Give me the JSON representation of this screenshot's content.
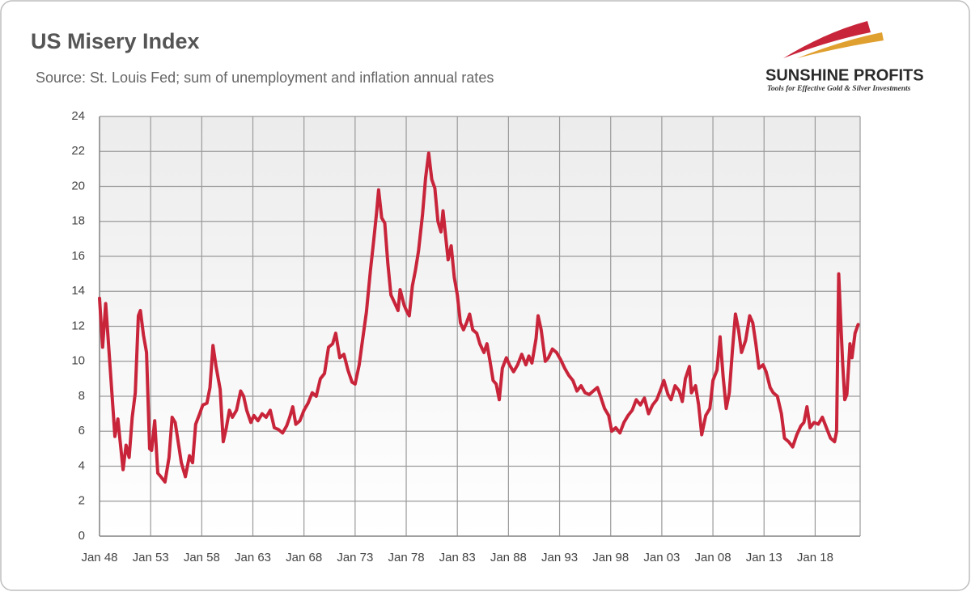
{
  "chart_data": {
    "type": "line",
    "title": "US Misery Index",
    "subtitle": "Source: St. Louis Fed; sum of unemployment and inflation annual rates",
    "logo": {
      "name": "SUNSHINE PROFITS",
      "tagline": "Tools for Effective Gold & Silver Investments"
    },
    "color": "#c8243a",
    "grid": true,
    "xlim": [
      1948,
      2022.4
    ],
    "xticks": [
      {
        "value": 1948,
        "label": "Jan 48"
      },
      {
        "value": 1953,
        "label": "Jan 53"
      },
      {
        "value": 1958,
        "label": "Jan 58"
      },
      {
        "value": 1963,
        "label": "Jan 63"
      },
      {
        "value": 1968,
        "label": "Jan 68"
      },
      {
        "value": 1973,
        "label": "Jan 73"
      },
      {
        "value": 1978,
        "label": "Jan 78"
      },
      {
        "value": 1983,
        "label": "Jan 83"
      },
      {
        "value": 1988,
        "label": "Jan 88"
      },
      {
        "value": 1993,
        "label": "Jan 93"
      },
      {
        "value": 1998,
        "label": "Jan 98"
      },
      {
        "value": 2003,
        "label": "Jan 03"
      },
      {
        "value": 2008,
        "label": "Jan 08"
      },
      {
        "value": 2013,
        "label": "Jan 13"
      },
      {
        "value": 2018,
        "label": "Jan 18"
      }
    ],
    "ylim": [
      0,
      24
    ],
    "yticks": [
      0,
      2,
      4,
      6,
      8,
      10,
      12,
      14,
      16,
      18,
      20,
      22,
      24
    ],
    "x": [
      1948.0,
      1948.3,
      1948.6,
      1949.0,
      1949.5,
      1949.8,
      1950.0,
      1950.3,
      1950.6,
      1950.9,
      1951.2,
      1951.5,
      1951.8,
      1952.0,
      1952.3,
      1952.6,
      1952.9,
      1953.1,
      1953.4,
      1953.7,
      1954.0,
      1954.4,
      1954.8,
      1955.1,
      1955.4,
      1955.8,
      1956.0,
      1956.4,
      1956.8,
      1957.1,
      1957.4,
      1957.8,
      1958.1,
      1958.5,
      1958.8,
      1959.1,
      1959.4,
      1959.8,
      1960.1,
      1960.4,
      1960.7,
      1961.0,
      1961.4,
      1961.8,
      1962.1,
      1962.4,
      1962.8,
      1963.1,
      1963.5,
      1963.9,
      1964.3,
      1964.7,
      1965.1,
      1965.5,
      1965.9,
      1966.3,
      1966.6,
      1966.9,
      1967.2,
      1967.6,
      1968.0,
      1968.4,
      1968.8,
      1969.2,
      1969.6,
      1970.0,
      1970.4,
      1970.8,
      1971.1,
      1971.5,
      1971.9,
      1972.3,
      1972.7,
      1973.0,
      1973.4,
      1973.7,
      1974.1,
      1974.5,
      1974.8,
      1975.1,
      1975.3,
      1975.6,
      1975.9,
      1976.2,
      1976.5,
      1976.9,
      1977.2,
      1977.4,
      1977.8,
      1978.1,
      1978.3,
      1978.6,
      1978.9,
      1979.2,
      1979.6,
      1979.9,
      1980.2,
      1980.5,
      1980.8,
      1981.1,
      1981.4,
      1981.6,
      1981.9,
      1982.1,
      1982.4,
      1982.7,
      1983.0,
      1983.3,
      1983.6,
      1983.9,
      1984.2,
      1984.5,
      1984.9,
      1985.2,
      1985.6,
      1985.9,
      1986.2,
      1986.5,
      1986.8,
      1987.1,
      1987.4,
      1987.8,
      1988.1,
      1988.5,
      1988.9,
      1989.3,
      1989.7,
      1990.0,
      1990.3,
      1990.7,
      1990.9,
      1991.2,
      1991.6,
      1991.9,
      1992.3,
      1992.7,
      1993.1,
      1993.5,
      1993.9,
      1994.3,
      1994.7,
      1995.1,
      1995.5,
      1995.9,
      1996.3,
      1996.7,
      1997.0,
      1997.4,
      1997.8,
      1998.1,
      1998.5,
      1998.9,
      1999.3,
      1999.7,
      2000.1,
      2000.5,
      2000.9,
      2001.3,
      2001.7,
      2002.1,
      2002.5,
      2002.9,
      2003.2,
      2003.6,
      2003.9,
      2004.3,
      2004.7,
      2005.0,
      2005.3,
      2005.7,
      2005.9,
      2006.3,
      2006.6,
      2006.9,
      2007.3,
      2007.7,
      2008.0,
      2008.4,
      2008.7,
      2009.0,
      2009.3,
      2009.6,
      2009.9,
      2010.2,
      2010.5,
      2010.8,
      2011.2,
      2011.6,
      2011.9,
      2012.2,
      2012.5,
      2012.9,
      2013.2,
      2013.6,
      2013.9,
      2014.3,
      2014.7,
      2015.0,
      2015.4,
      2015.8,
      2016.2,
      2016.6,
      2016.9,
      2017.2,
      2017.5,
      2017.9,
      2018.3,
      2018.7,
      2019.1,
      2019.5,
      2019.9,
      2020.1,
      2020.3,
      2020.5,
      2020.7,
      2020.9,
      2021.1,
      2021.4,
      2021.6,
      2021.9,
      2022.2
    ],
    "values": [
      13.6,
      10.8,
      13.3,
      10,
      5.7,
      6.7,
      5.5,
      3.8,
      5.2,
      4.5,
      6.8,
      8.2,
      12.6,
      12.9,
      11.5,
      10.5,
      5,
      4.9,
      6.6,
      3.6,
      3.4,
      3.1,
      4.5,
      6.8,
      6.5,
      5,
      4.2,
      3.4,
      4.6,
      4.2,
      6.4,
      7,
      7.5,
      7.6,
      8.5,
      10.9,
      9.7,
      8.4,
      5.4,
      6.2,
      7.2,
      6.8,
      7.2,
      8.3,
      8.0,
      7.2,
      6.5,
      6.9,
      6.6,
      7.0,
      6.8,
      7.2,
      6.2,
      6.1,
      5.9,
      6.3,
      6.8,
      7.4,
      6.4,
      6.6,
      7.2,
      7.6,
      8.2,
      8.0,
      9.0,
      9.3,
      10.8,
      11.0,
      11.6,
      10.2,
      10.4,
      9.5,
      8.8,
      8.7,
      9.8,
      11.1,
      12.8,
      15.2,
      16.8,
      18.5,
      19.8,
      18.2,
      17.9,
      15.6,
      13.8,
      13.3,
      12.9,
      14.1,
      13.2,
      12.8,
      12.6,
      14.3,
      15.2,
      16.3,
      18.4,
      20.5,
      21.9,
      20.4,
      19.9,
      18.0,
      17.4,
      18.6,
      16.9,
      15.8,
      16.6,
      14.8,
      13.8,
      12.2,
      11.8,
      12.2,
      12.7,
      11.8,
      11.6,
      11.0,
      10.5,
      11.0,
      10.0,
      8.9,
      8.7,
      7.8,
      9.6,
      10.2,
      9.8,
      9.4,
      9.8,
      10.4,
      9.8,
      10.3,
      9.9,
      11.3,
      12.6,
      11.8,
      10.0,
      10.2,
      10.7,
      10.5,
      10.1,
      9.6,
      9.2,
      8.9,
      8.3,
      8.6,
      8.2,
      8.1,
      8.3,
      8.5,
      8.0,
      7.3,
      6.9,
      6.0,
      6.2,
      5.9,
      6.5,
      6.9,
      7.2,
      7.8,
      7.5,
      7.9,
      7.0,
      7.5,
      7.8,
      8.4,
      8.9,
      8.1,
      7.8,
      8.6,
      8.3,
      7.7,
      9.0,
      9.7,
      8.2,
      8.6,
      7.5,
      5.8,
      6.9,
      7.3,
      8.9,
      9.5,
      11.4,
      9.1,
      7.3,
      8.2,
      10.6,
      12.7,
      11.8,
      10.5,
      11.2,
      12.6,
      12.2,
      11.0,
      9.6,
      9.8,
      9.4,
      8.5,
      8.2,
      8.0,
      7.0,
      5.6,
      5.4,
      5.1,
      5.8,
      6.3,
      6.5,
      7.4,
      6.2,
      6.5,
      6.4,
      6.8,
      6.2,
      5.6,
      5.4,
      6.0,
      15.0,
      12.3,
      9.8,
      7.8,
      8.1,
      11.0,
      10.2,
      11.6,
      12.1
    ]
  }
}
